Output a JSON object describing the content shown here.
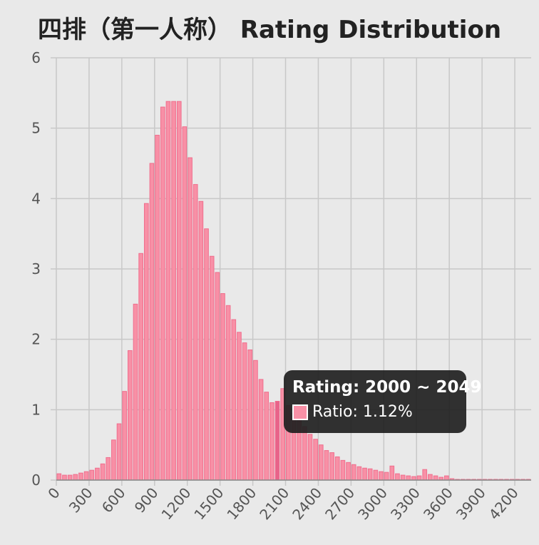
{
  "chart_data": {
    "type": "bar",
    "title": "四排（第一人称） Rating Distribution",
    "xlabel": "",
    "ylabel": "",
    "bin_width": 50,
    "x": [
      0,
      50,
      100,
      150,
      200,
      250,
      300,
      350,
      400,
      450,
      500,
      550,
      600,
      650,
      700,
      750,
      800,
      850,
      900,
      950,
      1000,
      1050,
      1100,
      1150,
      1200,
      1250,
      1300,
      1350,
      1400,
      1450,
      1500,
      1550,
      1600,
      1650,
      1700,
      1750,
      1800,
      1850,
      1900,
      1950,
      2000,
      2050,
      2100,
      2150,
      2200,
      2250,
      2300,
      2350,
      2400,
      2450,
      2500,
      2550,
      2600,
      2650,
      2700,
      2750,
      2800,
      2850,
      2900,
      2950,
      3000,
      3050,
      3100,
      3150,
      3200,
      3250,
      3300,
      3350,
      3400,
      3450,
      3500,
      3550,
      3600,
      3650,
      3700,
      3750,
      3800,
      3850,
      3900,
      3950,
      4000,
      4050,
      4100,
      4150,
      4200,
      4250,
      4300
    ],
    "values": [
      0.09,
      0.07,
      0.07,
      0.08,
      0.1,
      0.12,
      0.14,
      0.17,
      0.23,
      0.32,
      0.57,
      0.8,
      1.26,
      1.84,
      2.5,
      3.22,
      3.93,
      4.5,
      4.9,
      5.3,
      5.38,
      5.38,
      5.38,
      5.02,
      4.58,
      4.2,
      3.96,
      3.57,
      3.18,
      2.95,
      2.65,
      2.48,
      2.28,
      2.1,
      1.95,
      1.85,
      1.7,
      1.43,
      1.25,
      1.1,
      1.12,
      1.3,
      1.06,
      0.95,
      0.85,
      0.76,
      0.65,
      0.58,
      0.5,
      0.42,
      0.39,
      0.33,
      0.28,
      0.25,
      0.22,
      0.19,
      0.17,
      0.16,
      0.14,
      0.12,
      0.11,
      0.2,
      0.09,
      0.07,
      0.06,
      0.05,
      0.06,
      0.15,
      0.08,
      0.06,
      0.04,
      0.06,
      0.02,
      0.01,
      0.01,
      0.01,
      0.01,
      0.01,
      0.01,
      0.01,
      0.01,
      0.01,
      0.01,
      0.01,
      0.01,
      0.01,
      0.01
    ],
    "xlim": [
      0,
      4350
    ],
    "ylim": [
      0,
      6
    ],
    "x_ticks": [
      "0",
      "300",
      "600",
      "900",
      "1200",
      "1500",
      "1800",
      "2100",
      "2400",
      "2700",
      "3000",
      "3300",
      "3600",
      "3900",
      "4200"
    ],
    "y_ticks": [
      "0",
      "1",
      "2",
      "3",
      "4",
      "5",
      "6"
    ],
    "grid": true,
    "bar_color": "#f890a6",
    "bar_edge_color": "#f06e8d",
    "highlight_bar_x": 2000,
    "highlight_color": "#e8638a",
    "tooltip": {
      "title": "Rating: 2000 ~ 2049",
      "label": "Ratio: 1.12%"
    }
  }
}
